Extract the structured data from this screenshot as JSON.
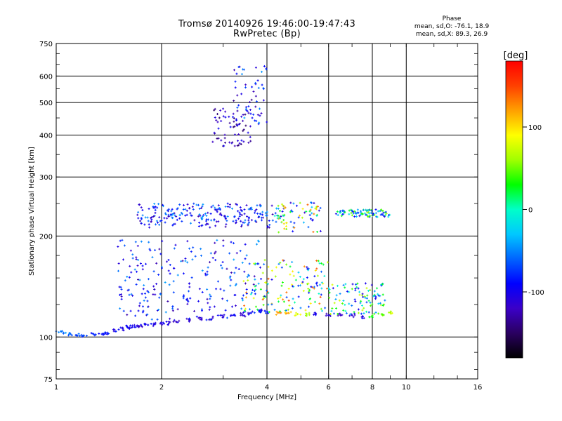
{
  "header": {
    "title": "Tromsø 20140926 19:46:00-19:47:43",
    "subtitle": "RwPretec (Bp)"
  },
  "phase_stats": {
    "heading": "Phase",
    "line_o": "mean, sd,O: -76.1, 18.9",
    "line_x": "mean, sd,X:  89.3, 26.9"
  },
  "chart_data": {
    "type": "scatter",
    "xlabel": "Frequency [MHz]",
    "ylabel": "Stationary phase Virtual Height [km]",
    "x_scale": "log",
    "y_scale": "log",
    "xlim": [
      1,
      16
    ],
    "ylim": [
      75,
      750
    ],
    "x_ticks": [
      1,
      2,
      4,
      6,
      8,
      10,
      16
    ],
    "y_ticks": [
      75,
      100,
      200,
      300,
      400,
      500,
      600,
      750
    ],
    "grid": true,
    "colorbar": {
      "label": "[deg]",
      "range": [
        -180,
        180
      ],
      "ticks": [
        100,
        0,
        -100
      ],
      "colors": [
        "#000000",
        "#2a0060",
        "#3b00c8",
        "#0000ff",
        "#0064ff",
        "#00c8ff",
        "#00ffc8",
        "#00ff00",
        "#a0ff00",
        "#ffff00",
        "#ffa000",
        "#ff4000",
        "#ff0000"
      ]
    },
    "series": [
      {
        "x": [
          1.0,
          1.05,
          1.1,
          1.15,
          1.2,
          1.28,
          1.35,
          1.4,
          1.48,
          1.55,
          1.6,
          1.65,
          1.7,
          1.75,
          1.8,
          1.9,
          2.0,
          2.1,
          2.2,
          2.4,
          2.6,
          2.8,
          3.0,
          3.2,
          3.4,
          3.6,
          3.8,
          4.0,
          4.3,
          4.6,
          4.9,
          5.2,
          5.5,
          6.0,
          6.5,
          7.0,
          7.5,
          8.0,
          8.5,
          9.0
        ],
        "y": [
          104,
          103,
          102,
          101,
          101,
          102,
          102,
          103,
          104,
          106,
          107,
          107,
          108,
          108,
          109,
          109,
          110,
          110,
          111,
          112,
          113,
          114,
          115,
          116,
          117,
          118,
          119,
          119,
          118,
          118,
          117,
          117,
          117,
          116,
          116,
          116,
          115,
          116,
          117,
          118
        ],
        "phase": [
          -60,
          -55,
          -60,
          -70,
          -75,
          -80,
          -85,
          -90,
          -95,
          -100,
          -100,
          -100,
          -105,
          -110,
          -100,
          -100,
          -100,
          -105,
          -110,
          -115,
          -120,
          -110,
          -105,
          -100,
          -110,
          -100,
          -90,
          -80,
          130,
          120,
          90,
          60,
          -100,
          -110,
          -120,
          -110,
          -100,
          40,
          50,
          70
        ]
      }
    ],
    "scatter_bands": [
      {
        "fmin": 1.5,
        "fmax": 3.8,
        "hmin": 112,
        "hmax": 195,
        "phase": [
          -130,
          -40
        ]
      },
      {
        "fmin": 3.4,
        "fmax": 6.0,
        "hmin": 118,
        "hmax": 170,
        "phase": [
          -110,
          150
        ]
      },
      {
        "fmin": 6.0,
        "fmax": 8.7,
        "hmin": 117,
        "hmax": 145,
        "phase": [
          -110,
          80
        ]
      },
      {
        "fmin": 1.7,
        "fmax": 4.2,
        "hmin": 212,
        "hmax": 250,
        "phase": [
          -130,
          -40
        ]
      },
      {
        "fmin": 4.2,
        "fmax": 5.7,
        "hmin": 205,
        "hmax": 252,
        "phase": [
          -120,
          140
        ]
      },
      {
        "fmin": 6.3,
        "fmax": 9.0,
        "hmin": 228,
        "hmax": 240,
        "phase": [
          -120,
          70
        ]
      },
      {
        "fmin": 2.8,
        "fmax": 3.6,
        "hmin": 370,
        "hmax": 480,
        "phase": [
          -150,
          -90
        ]
      },
      {
        "fmin": 3.2,
        "fmax": 4.0,
        "hmin": 430,
        "hmax": 650,
        "phase": [
          -140,
          -40
        ]
      }
    ]
  }
}
